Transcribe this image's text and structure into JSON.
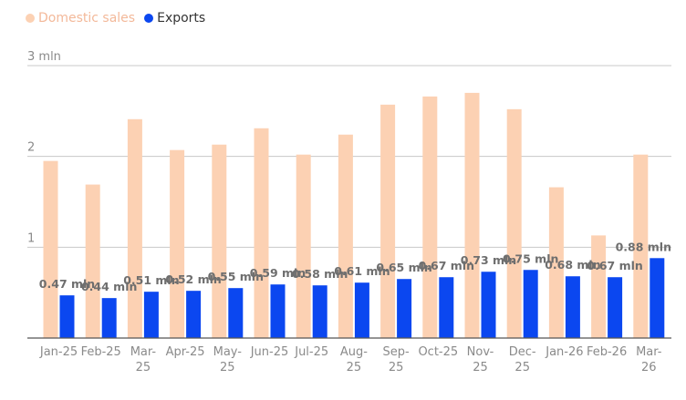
{
  "legend": {
    "domestic_label": "Domestic sales",
    "exports_label": "Exports"
  },
  "colors": {
    "domestic": "#fcd1b3",
    "exports": "#0b47f0",
    "grid": "#c8c8c8",
    "axis": "#555555",
    "tick_text": "#8a8a8a",
    "data_label": "#6e6e6e"
  },
  "chart_data": {
    "type": "bar",
    "categories": [
      [
        "Jan-25"
      ],
      [
        "Feb-25"
      ],
      [
        "Mar-",
        "25"
      ],
      [
        "Apr-25"
      ],
      [
        "May-",
        "25"
      ],
      [
        "Jun-25"
      ],
      [
        "Jul-25"
      ],
      [
        "Aug-",
        "25"
      ],
      [
        "Sep-",
        "25"
      ],
      [
        "Oct-25"
      ],
      [
        "Nov-",
        "25"
      ],
      [
        "Dec-",
        "25"
      ],
      [
        "Jan-26"
      ],
      [
        "Feb-26"
      ],
      [
        "Mar-",
        "26"
      ]
    ],
    "series": [
      {
        "name": "Domestic sales",
        "values": [
          1.95,
          1.69,
          2.41,
          2.07,
          2.13,
          2.31,
          2.02,
          2.24,
          2.57,
          2.66,
          2.7,
          2.52,
          1.66,
          1.13,
          2.02
        ]
      },
      {
        "name": "Exports",
        "values": [
          0.47,
          0.44,
          0.51,
          0.52,
          0.55,
          0.59,
          0.58,
          0.61,
          0.65,
          0.67,
          0.73,
          0.75,
          0.68,
          0.67,
          0.88
        ],
        "labels": [
          "0.47 mln",
          "0.44 mln",
          "0.51 mln",
          "0.52 mln",
          "0.55 mln",
          "0.59 mln",
          "0.58 mln",
          "0.61 mln",
          "0.65 mln",
          "0.67 mln",
          "0.73 mln",
          "0.75 mln",
          "0.68 mln",
          "0.67 mln",
          "0.88 mln"
        ]
      }
    ],
    "ylim": [
      0,
      3
    ],
    "yticks": [
      {
        "value": 1,
        "label": "1"
      },
      {
        "value": 2,
        "label": "2"
      },
      {
        "value": 3,
        "label": "3 mln"
      }
    ],
    "grid": true,
    "legend_position": "top-left"
  }
}
